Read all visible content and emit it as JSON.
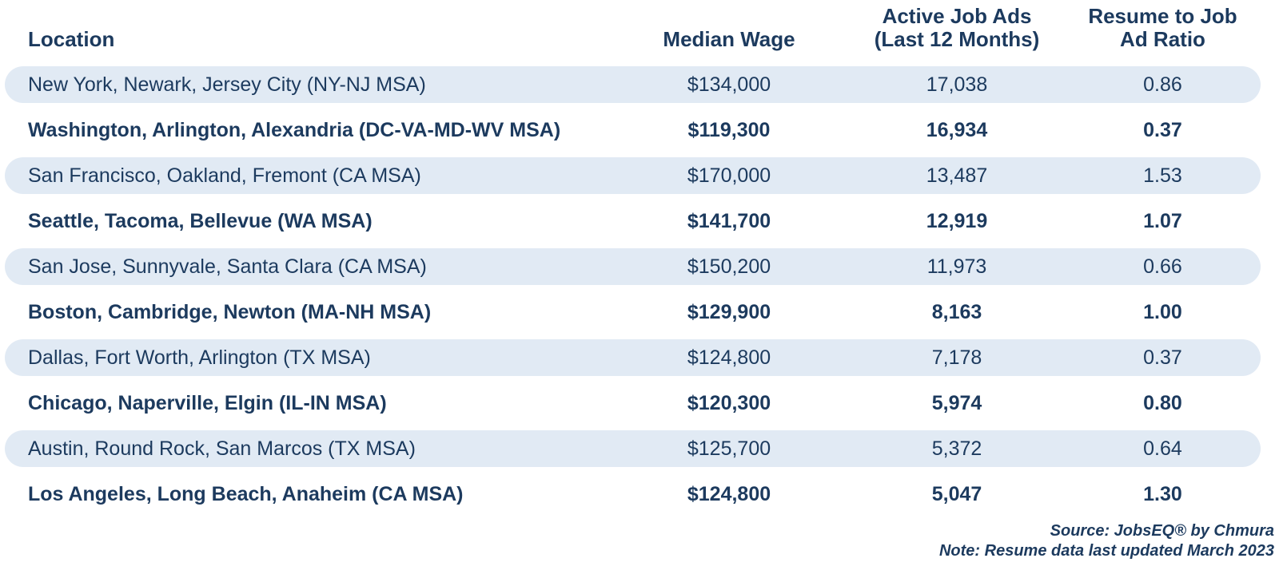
{
  "colors": {
    "text_navy": "#1c3a5e",
    "row_highlight": "#e1eaf4",
    "background": "#ffffff"
  },
  "chart_data": {
    "type": "table",
    "columns": [
      {
        "id": "location",
        "label": "Location",
        "label_lines": [
          "Location"
        ],
        "align": "left"
      },
      {
        "id": "median_wage",
        "label": "Median Wage",
        "label_lines": [
          "Median Wage"
        ],
        "align": "center"
      },
      {
        "id": "active_job_ads",
        "label": "Active Job Ads (Last 12 Months)",
        "label_lines": [
          "Active Job Ads",
          "(Last 12 Months)"
        ],
        "align": "center"
      },
      {
        "id": "resume_to_job_ad_ratio",
        "label": "Resume to Job Ad Ratio",
        "label_lines": [
          "Resume to Job",
          "Ad Ratio"
        ],
        "align": "center"
      }
    ],
    "rows": [
      {
        "location": "New York, Newark, Jersey City (NY-NJ MSA)",
        "median_wage": "$134,000",
        "active_job_ads": "17,038",
        "resume_to_job_ad_ratio": "0.86",
        "highlighted": true
      },
      {
        "location": "Washington, Arlington, Alexandria (DC-VA-MD-WV MSA)",
        "median_wage": "$119,300",
        "active_job_ads": "16,934",
        "resume_to_job_ad_ratio": "0.37",
        "highlighted": false
      },
      {
        "location": "San Francisco, Oakland, Fremont (CA MSA)",
        "median_wage": "$170,000",
        "active_job_ads": "13,487",
        "resume_to_job_ad_ratio": "1.53",
        "highlighted": true
      },
      {
        "location": "Seattle, Tacoma, Bellevue (WA MSA)",
        "median_wage": "$141,700",
        "active_job_ads": "12,919",
        "resume_to_job_ad_ratio": "1.07",
        "highlighted": false
      },
      {
        "location": "San Jose, Sunnyvale, Santa Clara (CA MSA)",
        "median_wage": "$150,200",
        "active_job_ads": "11,973",
        "resume_to_job_ad_ratio": "0.66",
        "highlighted": true
      },
      {
        "location": "Boston, Cambridge, Newton (MA-NH MSA)",
        "median_wage": "$129,900",
        "active_job_ads": "8,163",
        "resume_to_job_ad_ratio": "1.00",
        "highlighted": false
      },
      {
        "location": "Dallas, Fort Worth, Arlington (TX MSA)",
        "median_wage": "$124,800",
        "active_job_ads": "7,178",
        "resume_to_job_ad_ratio": "0.37",
        "highlighted": true
      },
      {
        "location": "Chicago, Naperville, Elgin (IL-IN MSA)",
        "median_wage": "$120,300",
        "active_job_ads": "5,974",
        "resume_to_job_ad_ratio": "0.80",
        "highlighted": false
      },
      {
        "location": "Austin, Round Rock, San Marcos (TX MSA)",
        "median_wage": "$125,700",
        "active_job_ads": "5,372",
        "resume_to_job_ad_ratio": "0.64",
        "highlighted": true
      },
      {
        "location": "Los Angeles, Long Beach, Anaheim (CA MSA)",
        "median_wage": "$124,800",
        "active_job_ads": "5,047",
        "resume_to_job_ad_ratio": "1.30",
        "highlighted": false
      }
    ],
    "footer_lines": [
      "Source: JobsEQ® by Chmura",
      "Note: Resume data last updated March 2023"
    ]
  }
}
